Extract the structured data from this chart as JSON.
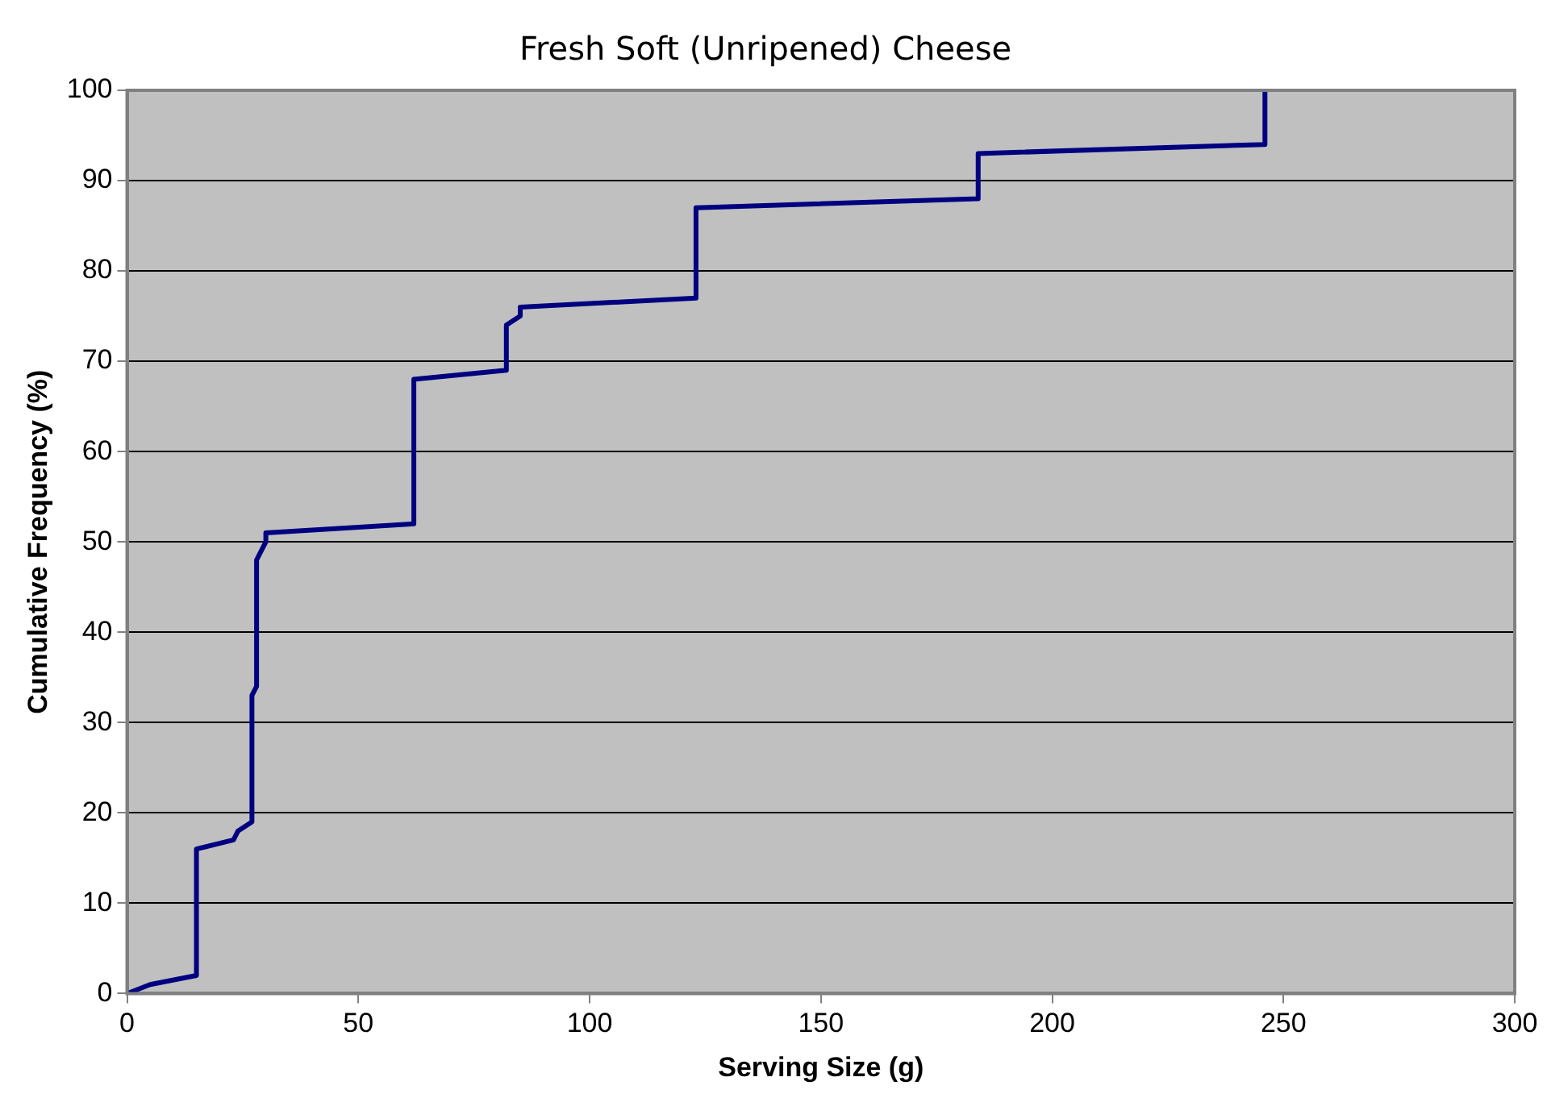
{
  "chart_data": {
    "type": "line",
    "title": "Fresh Soft (Unripened) Cheese",
    "xlabel": "Serving Size (g)",
    "ylabel": "Cumulative Frequency (%)",
    "series": [
      {
        "color": "#000080",
        "x": [
          0,
          5,
          15,
          15,
          23,
          24,
          27,
          27,
          28,
          28,
          30,
          30,
          62,
          62,
          82,
          82,
          85,
          85,
          123,
          123,
          184,
          184,
          246,
          246
        ],
        "values": [
          0,
          1,
          2,
          16,
          17,
          18,
          19,
          33,
          34,
          48,
          50,
          51,
          52,
          68,
          69,
          74,
          75,
          76,
          77,
          87,
          88,
          93,
          94,
          100
        ]
      }
    ],
    "xlim": [
      0,
      300
    ],
    "xticks": [
      0,
      50,
      100,
      150,
      200,
      250,
      300
    ],
    "ylim": [
      0,
      100
    ],
    "yticks": [
      0,
      10,
      20,
      30,
      40,
      50,
      60,
      70,
      80,
      90,
      100
    ],
    "grid": "y",
    "legend": false,
    "marker": "none",
    "line_style": "solid"
  }
}
